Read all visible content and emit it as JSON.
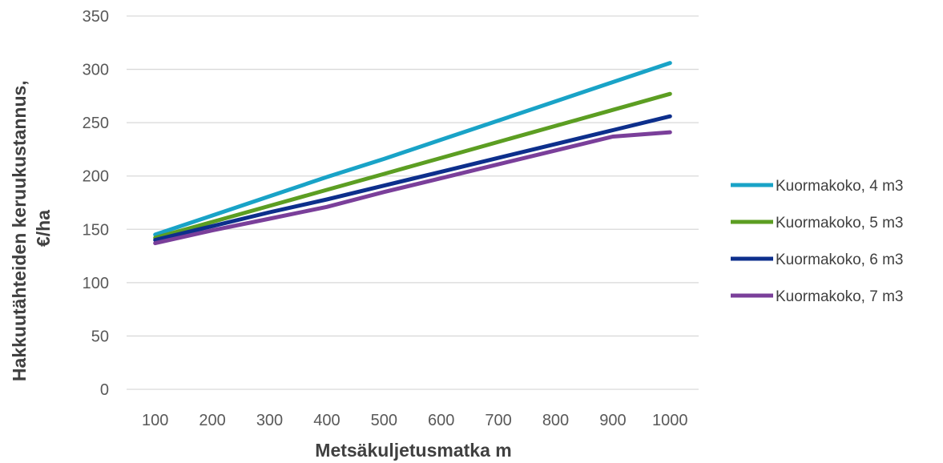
{
  "chart_data": {
    "type": "line",
    "xlabel": "Metsäkuljetusmatka m",
    "ylabel_lines": [
      "Hakkuutähteiden keruukustannus,",
      "€/ha"
    ],
    "x": [
      100,
      200,
      300,
      400,
      500,
      600,
      700,
      800,
      900,
      1000
    ],
    "ylim": [
      0,
      350
    ],
    "yticks": [
      0,
      50,
      100,
      150,
      200,
      250,
      300,
      350
    ],
    "grid": true,
    "legend_position": "right",
    "series": [
      {
        "name": "Kuormakoko, 4 m3",
        "color": "#19a3c7",
        "values": [
          145,
          163,
          181,
          199,
          216,
          234,
          252,
          270,
          288,
          306
        ]
      },
      {
        "name": "Kuormakoko, 5 m3",
        "color": "#5c9e22",
        "values": [
          142,
          157,
          172,
          187,
          202,
          217,
          232,
          247,
          262,
          277
        ]
      },
      {
        "name": "Kuormakoko, 6 m3",
        "color": "#0d2f8c",
        "values": [
          140,
          153,
          166,
          178,
          191,
          204,
          217,
          230,
          243,
          256
        ]
      },
      {
        "name": "Kuormakoko, 7 m3",
        "color": "#7a3f9a",
        "values": [
          137,
          149,
          160,
          171,
          185,
          198,
          211,
          224,
          237,
          241
        ]
      }
    ]
  }
}
